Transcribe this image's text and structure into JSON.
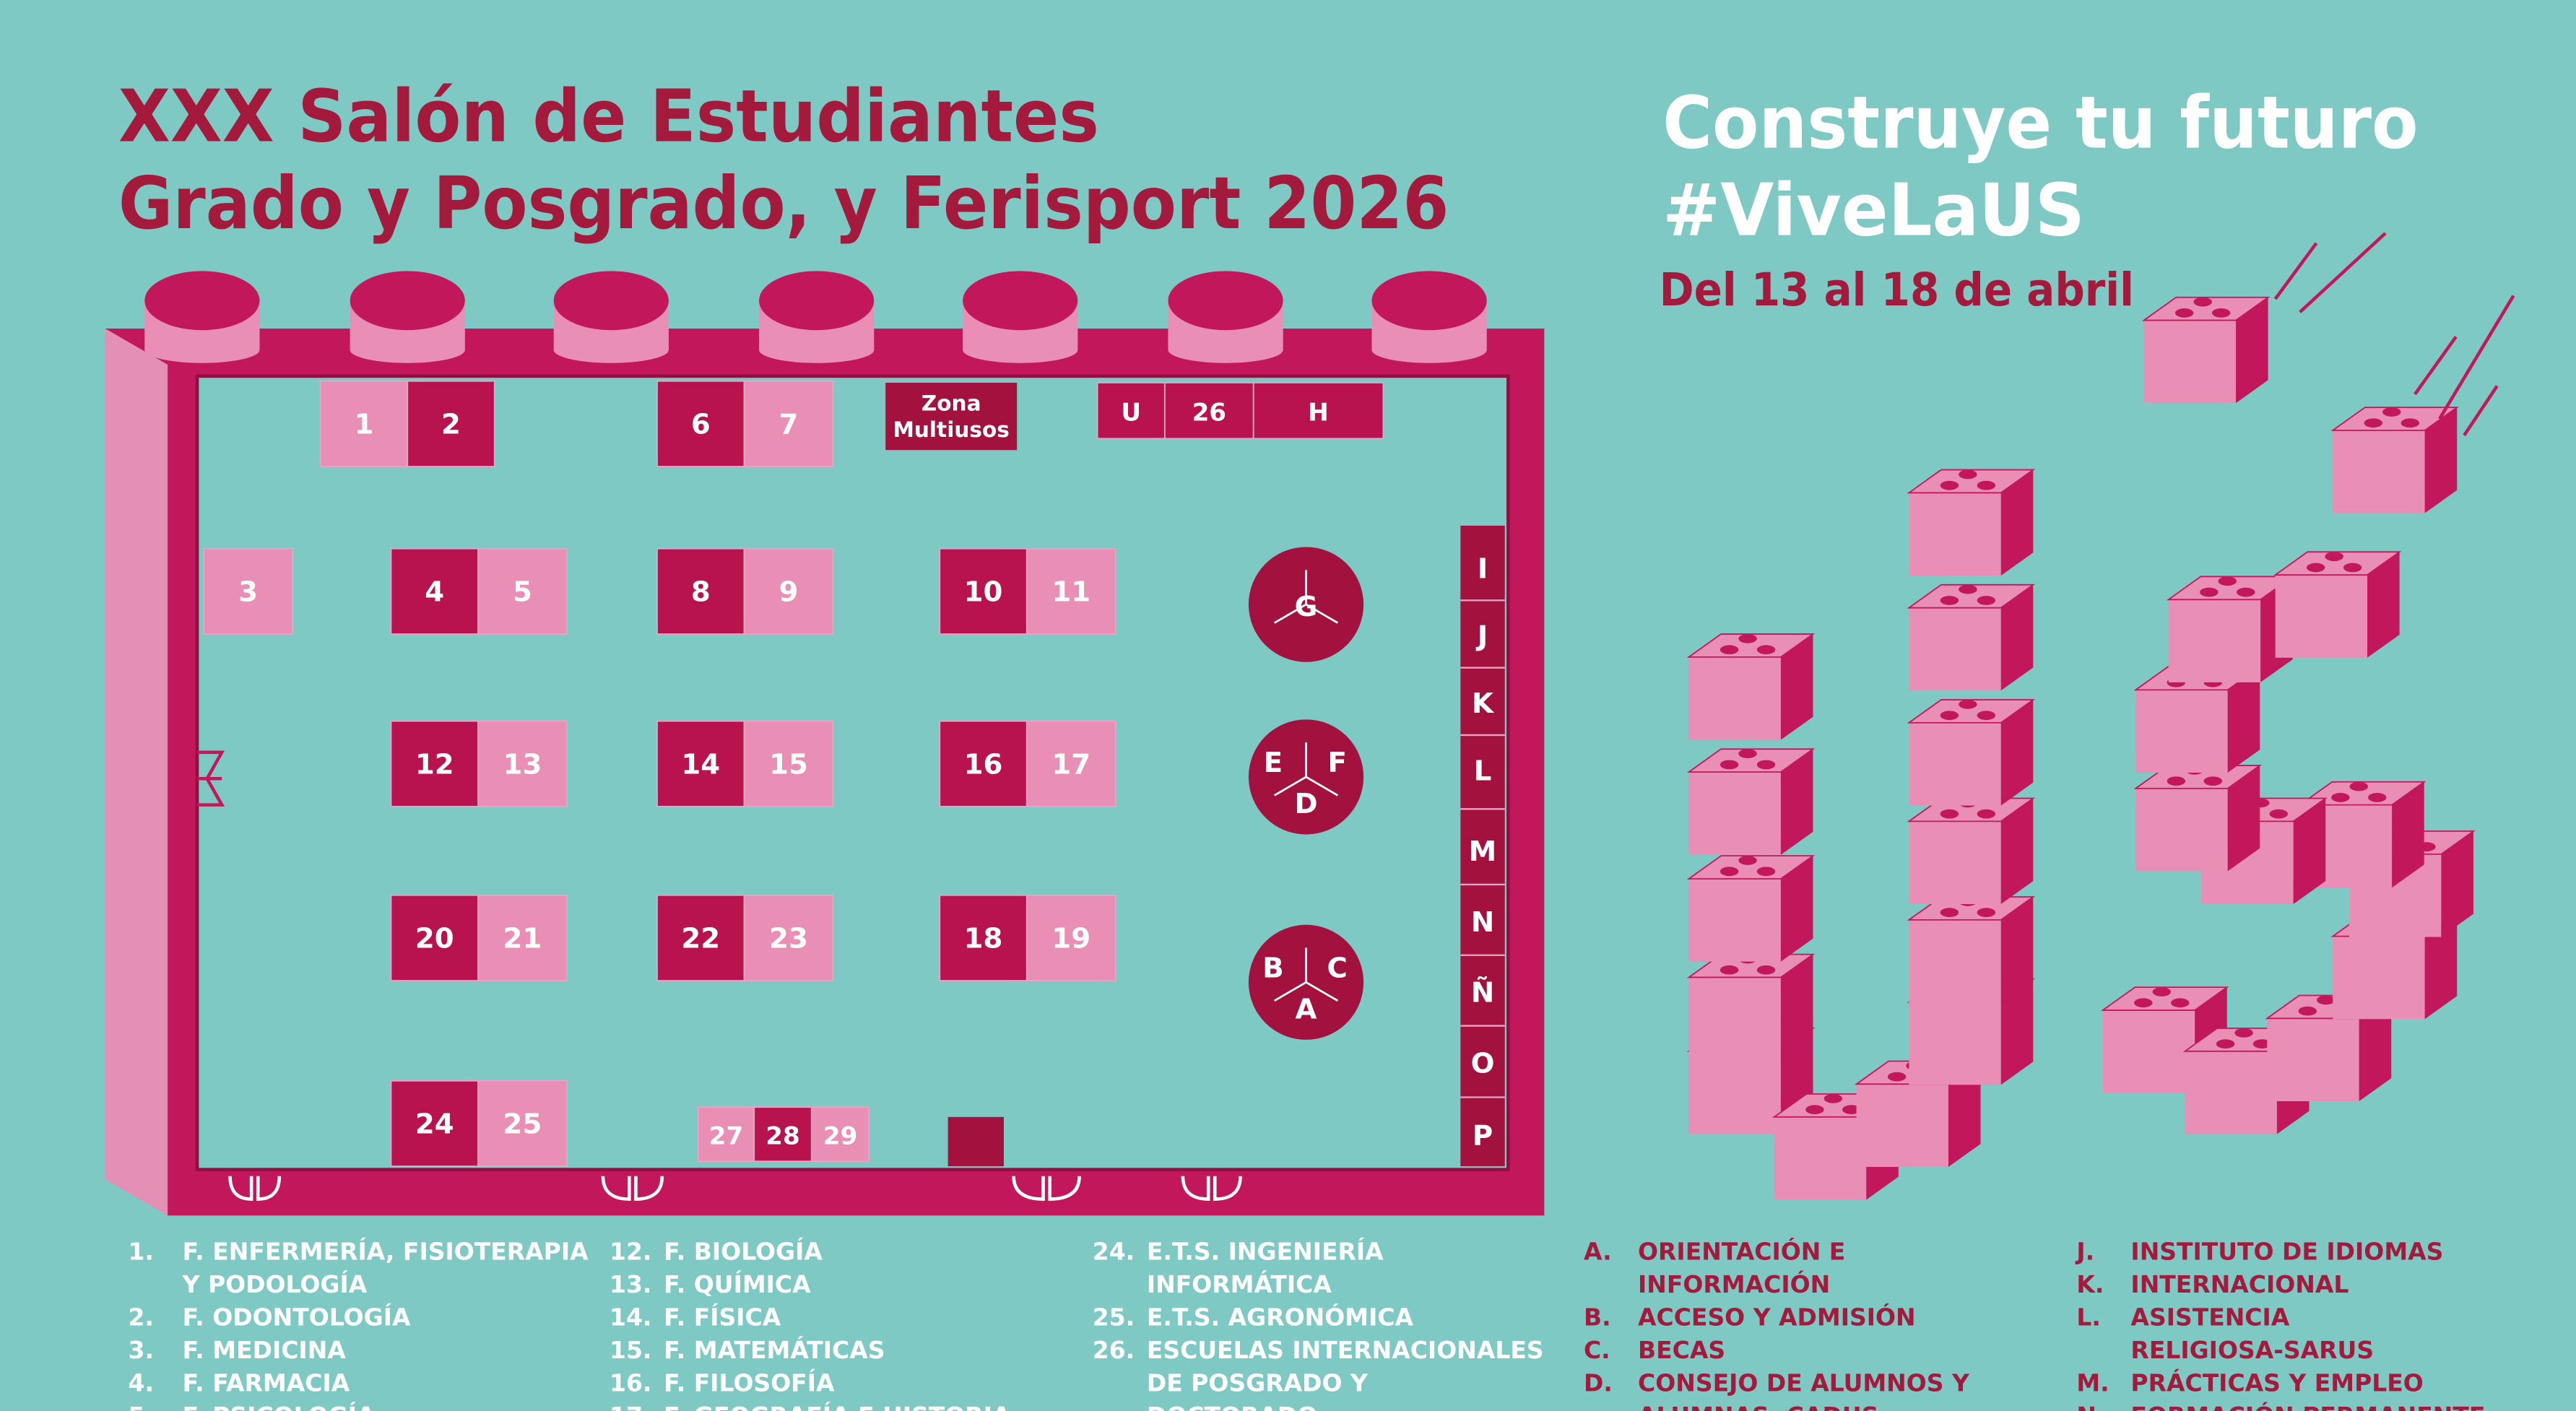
{
  "header": {
    "title_lines": [
      "XXX Salón de Estudiantes",
      "Grado y Posgrado, y Ferisport 2026"
    ],
    "slogan_lines": [
      "Construye tu futuro",
      "#ViveLaUS"
    ],
    "dates": "Del 13 al 18 de abril"
  },
  "map": {
    "booths": [
      "1",
      "2",
      "6",
      "7",
      "U",
      "26",
      "H",
      "3",
      "4",
      "5",
      "8",
      "9",
      "10",
      "11",
      "12",
      "13",
      "14",
      "15",
      "16",
      "17",
      "20",
      "21",
      "22",
      "23",
      "18",
      "19",
      "24",
      "25",
      "27",
      "28",
      "29"
    ],
    "zone": [
      "Zona",
      "Multiusos"
    ],
    "circles": [
      [
        "G"
      ],
      [
        "E",
        "F",
        "D"
      ],
      [
        "B",
        "C",
        "A"
      ]
    ],
    "column": [
      "I",
      "J",
      "K",
      "L",
      "M",
      "N",
      "Ñ",
      "O",
      "P"
    ]
  },
  "legend": {
    "columns": [
      [
        {
          "num": "1.",
          "lines": [
            "F. ENFERMERÍA, FISIOTERAPIA",
            "Y PODOLOGÍA"
          ]
        },
        {
          "num": "2.",
          "lines": [
            "F. ODONTOLOGÍA"
          ]
        },
        {
          "num": "3.",
          "lines": [
            "F. MEDICINA"
          ]
        },
        {
          "num": "4.",
          "lines": [
            "F. FARMACIA"
          ]
        },
        {
          "num": "5.",
          "lines": [
            "F. PSICOLOGÍA"
          ]
        }
      ],
      [
        {
          "num": "12.",
          "lines": [
            "F. BIOLOGÍA"
          ]
        },
        {
          "num": "13.",
          "lines": [
            "F. QUÍMICA"
          ]
        },
        {
          "num": "14.",
          "lines": [
            "F. FÍSICA"
          ]
        },
        {
          "num": "15.",
          "lines": [
            "F. MATEMÁTICAS"
          ]
        },
        {
          "num": "16.",
          "lines": [
            "F. FILOSOFÍA"
          ]
        },
        {
          "num": "17.",
          "lines": [
            "F. GEOGRAFÍA E HISTORIA"
          ]
        }
      ],
      [
        {
          "num": "24.",
          "lines": [
            "E.T.S. INGENIERÍA",
            "INFORMÁTICA"
          ]
        },
        {
          "num": "25.",
          "lines": [
            "E.T.S. AGRONÓMICA"
          ]
        },
        {
          "num": "26.",
          "lines": [
            "ESCUELAS INTERNACIONALES",
            "DE POSGRADO Y",
            "DOCTORADO"
          ]
        }
      ],
      [
        {
          "num": "A.",
          "lines": [
            "ORIENTACIÓN E",
            "INFORMACIÓN"
          ]
        },
        {
          "num": "B.",
          "lines": [
            "ACCESO Y ADMISIÓN"
          ]
        },
        {
          "num": "C.",
          "lines": [
            "BECAS"
          ]
        },
        {
          "num": "D.",
          "lines": [
            "CONSEJO DE ALUMNOS Y",
            "ALUMNAS. CADUS"
          ]
        }
      ],
      [
        {
          "num": "J.",
          "lines": [
            "INSTITUTO DE IDIOMAS"
          ]
        },
        {
          "num": "K.",
          "lines": [
            "INTERNACIONAL"
          ]
        },
        {
          "num": "L.",
          "lines": [
            "ASISTENCIA",
            "RELIGIOSA-SARUS"
          ]
        },
        {
          "num": "M.",
          "lines": [
            "PRÁCTICAS Y EMPLEO"
          ]
        },
        {
          "num": "N.",
          "lines": [
            "FORMACIÓN PERMANENTE"
          ]
        }
      ]
    ]
  }
}
